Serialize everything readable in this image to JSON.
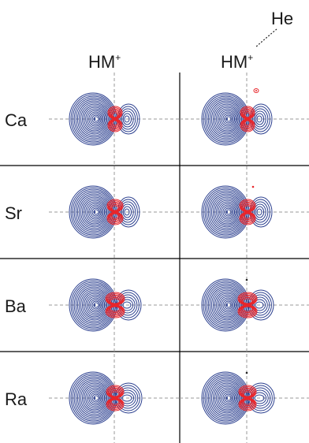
{
  "figure": {
    "columns": [
      {
        "key": "hm",
        "label": "HM",
        "charge": "+"
      },
      {
        "key": "hm_he",
        "label": "HM",
        "charge": "+"
      }
    ],
    "he_label": "He",
    "rows": [
      {
        "label": "Ca"
      },
      {
        "label": "Sr"
      },
      {
        "label": "Ba"
      },
      {
        "label": "Ra"
      }
    ],
    "colors": {
      "negative": "#2b3f8f",
      "positive": "#e8262b",
      "axes": "#9a9a9a",
      "separator": "#000000"
    }
  }
}
